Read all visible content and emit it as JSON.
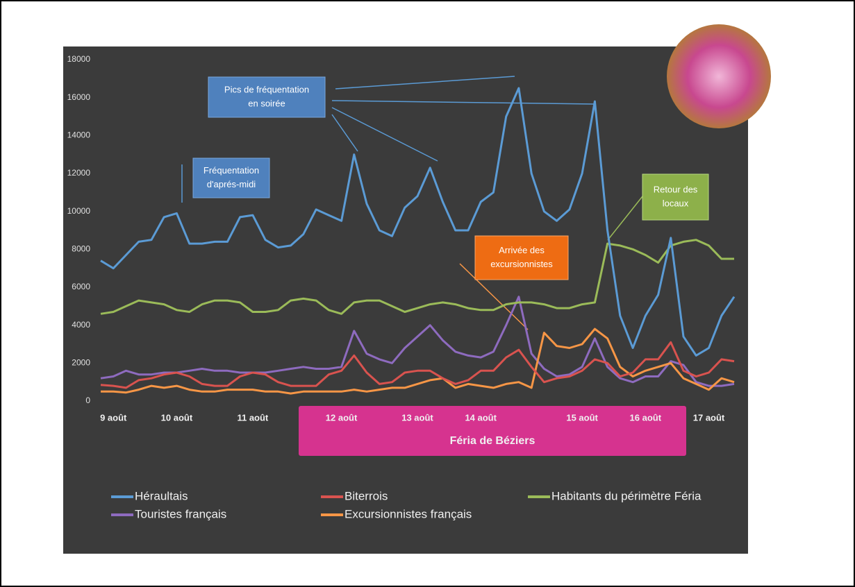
{
  "chart_data": {
    "type": "line",
    "categories": [
      null,
      "9 août",
      null,
      null,
      null,
      null,
      "10 août",
      null,
      null,
      null,
      null,
      null,
      "11 août",
      null,
      null,
      null,
      null,
      null,
      null,
      "12 août",
      null,
      null,
      null,
      null,
      null,
      "13 août",
      null,
      null,
      null,
      null,
      "14 août",
      null,
      null,
      null,
      null,
      null,
      null,
      null,
      "15 août",
      null,
      null,
      null,
      null,
      "16 août",
      null,
      null,
      null,
      null,
      "17 août",
      null,
      null
    ],
    "ylim": [
      0,
      18000
    ],
    "yticks": [
      0,
      2000,
      4000,
      6000,
      8000,
      10000,
      12000,
      14000,
      16000,
      18000
    ],
    "grid": false,
    "series": [
      {
        "name": "Héraultais",
        "color": "#5b9bd5",
        "values": [
          7400,
          7000,
          7700,
          8400,
          8500,
          9700,
          9900,
          8300,
          8300,
          8400,
          8400,
          9700,
          9800,
          8500,
          8100,
          8200,
          8800,
          10100,
          9800,
          9500,
          13000,
          10400,
          9000,
          8700,
          10200,
          10800,
          12300,
          10500,
          9000,
          9000,
          10500,
          11000,
          15000,
          16500,
          12000,
          10000,
          9500,
          10100,
          12000,
          15800,
          9000,
          4500,
          2800,
          4500,
          5600,
          8600,
          3400,
          2400,
          2800,
          4500,
          5500
        ]
      },
      {
        "name": "Biterrois",
        "color": "#d9534f",
        "values": [
          850,
          800,
          700,
          1100,
          1200,
          1400,
          1500,
          1300,
          900,
          800,
          800,
          1300,
          1500,
          1400,
          1000,
          800,
          800,
          800,
          1400,
          1600,
          2400,
          1500,
          900,
          1000,
          1500,
          1600,
          1600,
          1200,
          900,
          1100,
          1600,
          1600,
          2300,
          2700,
          1800,
          1000,
          1200,
          1300,
          1600,
          2200,
          2000,
          1300,
          1500,
          2200,
          2200,
          3100,
          1600,
          1300,
          1500,
          2200,
          2100
        ]
      },
      {
        "name": "Habitants du périmètre Féria",
        "color": "#9bbb59",
        "values": [
          4600,
          4700,
          5000,
          5300,
          5200,
          5100,
          4800,
          4700,
          5100,
          5300,
          5300,
          5200,
          4700,
          4700,
          4800,
          5300,
          5400,
          5300,
          4800,
          4600,
          5200,
          5300,
          5300,
          5000,
          4700,
          4900,
          5100,
          5200,
          5100,
          4900,
          4800,
          4800,
          5100,
          5200,
          5200,
          5100,
          4900,
          4900,
          5100,
          5200,
          8300,
          8200,
          8000,
          7700,
          7300,
          8200,
          8400,
          8500,
          8200,
          7500,
          7500
        ]
      },
      {
        "name": "Touristes français",
        "color": "#8e6bbf",
        "values": [
          1200,
          1300,
          1600,
          1400,
          1400,
          1500,
          1500,
          1600,
          1700,
          1600,
          1600,
          1500,
          1500,
          1500,
          1600,
          1700,
          1800,
          1700,
          1700,
          1800,
          3700,
          2500,
          2200,
          2000,
          2800,
          3400,
          4000,
          3200,
          2600,
          2400,
          2300,
          2600,
          4000,
          5500,
          2500,
          1700,
          1300,
          1400,
          1800,
          3300,
          1800,
          1200,
          1000,
          1300,
          1300,
          2100,
          1900,
          1000,
          800,
          800,
          900
        ]
      },
      {
        "name": "Excursionnistes français",
        "color": "#f79646",
        "values": [
          500,
          500,
          450,
          600,
          800,
          700,
          800,
          600,
          500,
          500,
          600,
          600,
          600,
          500,
          500,
          400,
          500,
          500,
          500,
          500,
          600,
          500,
          600,
          700,
          700,
          900,
          1100,
          1200,
          700,
          900,
          800,
          700,
          900,
          1000,
          700,
          3600,
          2900,
          2800,
          3000,
          3800,
          3300,
          1800,
          1300,
          1600,
          1800,
          2000,
          1200,
          900,
          600,
          1200,
          1000
        ]
      }
    ],
    "annotations": [
      {
        "text": [
          "Fréquentation",
          "d'aprés-midi"
        ]
      },
      {
        "text": [
          "Pics de fréquentation",
          "en soirée"
        ]
      },
      {
        "text": [
          "Retour des",
          "locaux"
        ]
      },
      {
        "text": [
          "Arrivée des",
          "excursionnistes"
        ]
      }
    ],
    "band_label": "Féria de Béziers"
  }
}
